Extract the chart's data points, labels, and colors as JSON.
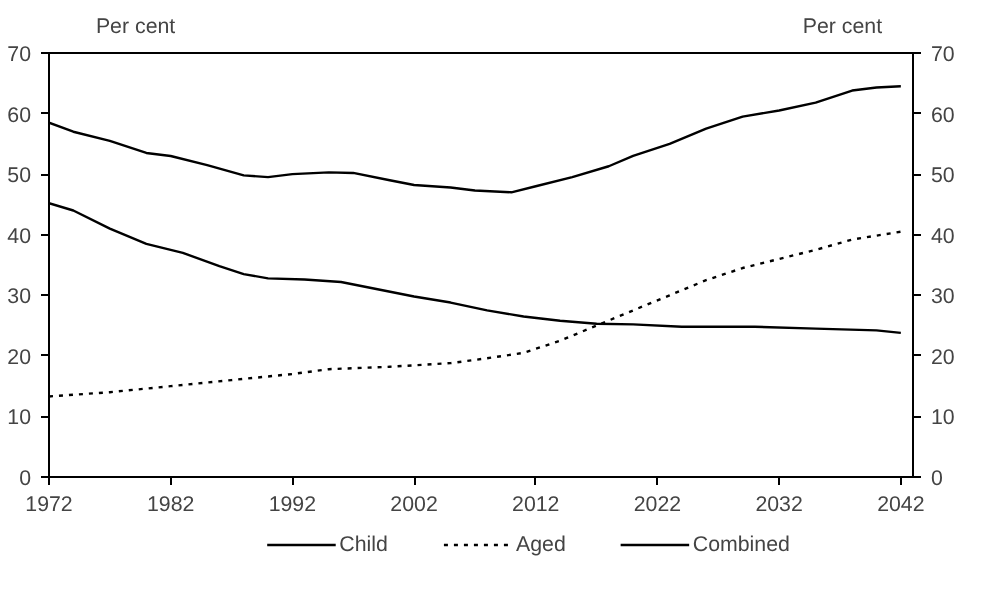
{
  "chart_data": {
    "type": "line",
    "xlabel": null,
    "ylabel": "Per cent",
    "y2label": "Per cent",
    "xlim": [
      1972,
      2043
    ],
    "xticks": [
      1972,
      1982,
      1992,
      2002,
      2012,
      2022,
      2032,
      2042
    ],
    "ylim": [
      0,
      70
    ],
    "yticks": [
      0,
      10,
      20,
      30,
      40,
      50,
      60,
      70
    ],
    "y2lim": [
      0,
      70
    ],
    "y2ticks": [
      0,
      10,
      20,
      30,
      40,
      50,
      60,
      70
    ],
    "grid": false,
    "legend": "bottom",
    "series": [
      {
        "name": "Child",
        "color": "#000000",
        "line_style": "solid",
        "x": [
          1972,
          1974,
          1977,
          1980,
          1983,
          1986,
          1988,
          1990,
          1993,
          1996,
          1999,
          2002,
          2005,
          2008,
          2011,
          2014,
          2017,
          2020,
          2024,
          2030,
          2035,
          2040,
          2042
        ],
        "values": [
          45.2,
          44,
          41,
          38.5,
          37,
          34.8,
          33.5,
          32.8,
          32.6,
          32.2,
          31,
          29.8,
          28.8,
          27.5,
          26.5,
          25.8,
          25.3,
          25.2,
          24.8,
          24.8,
          24.5,
          24.2,
          23.8
        ]
      },
      {
        "name": "Aged",
        "color": "#000000",
        "line_style": "dotted",
        "x": [
          1972,
          1977,
          1982,
          1987,
          1992,
          1995,
          2000,
          2005,
          2008,
          2011,
          2014,
          2017,
          2020,
          2023,
          2026,
          2029,
          2032,
          2035,
          2038,
          2042
        ],
        "values": [
          13.3,
          14,
          15,
          16,
          17,
          17.8,
          18.2,
          18.8,
          19.6,
          20.5,
          22.5,
          25,
          27.5,
          30,
          32.5,
          34.5,
          36,
          37.5,
          39.2,
          40.5
        ]
      },
      {
        "name": "Combined",
        "color": "#000000",
        "line_style": "solid",
        "x": [
          1972,
          1974,
          1977,
          1980,
          1982,
          1985,
          1988,
          1990,
          1992,
          1995,
          1997,
          2000,
          2002,
          2005,
          2007,
          2010,
          2012,
          2015,
          2018,
          2020,
          2023,
          2026,
          2029,
          2032,
          2035,
          2038,
          2040,
          2042
        ],
        "values": [
          58.5,
          57,
          55.5,
          53.5,
          53,
          51.5,
          49.8,
          49.5,
          50,
          50.3,
          50.2,
          49,
          48.2,
          47.8,
          47.3,
          47,
          48,
          49.5,
          51.3,
          53,
          55,
          57.5,
          59.5,
          60.5,
          61.8,
          63.8,
          64.3,
          64.5
        ]
      }
    ]
  }
}
